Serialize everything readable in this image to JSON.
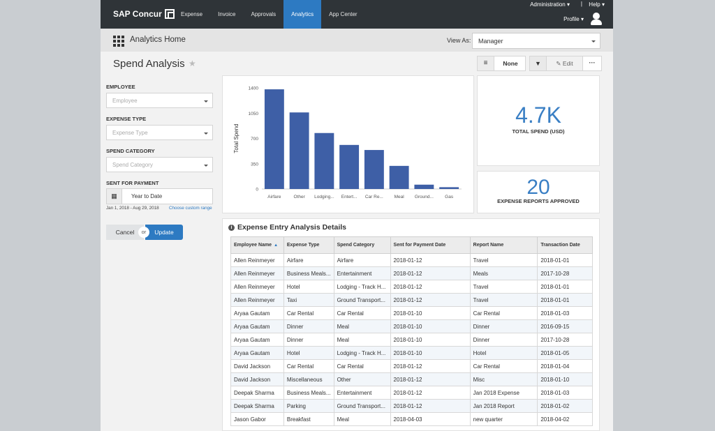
{
  "nav": {
    "brand": "SAP Concur",
    "tabs": [
      "Expense",
      "Invoice",
      "Approvals",
      "Analytics",
      "App Center"
    ],
    "active_tab": "Analytics",
    "administration": "Administration ▾",
    "separator": "|",
    "help": "Help ▾",
    "profile": "Profile ▾"
  },
  "subheader": {
    "title": "Analytics Home",
    "view_as_label": "View As:",
    "view_as_value": "Manager"
  },
  "page": {
    "title": "Spend Analysis"
  },
  "toolbar": {
    "data_source_value": "None",
    "edit_label": "Edit",
    "more_label": "···"
  },
  "filters": {
    "employee_label": "EMPLOYEE",
    "employee_placeholder": "Employee",
    "expense_type_label": "EXPENSE TYPE",
    "expense_type_placeholder": "Expense Type",
    "spend_category_label": "SPEND CATEGORY",
    "spend_category_placeholder": "Spend Category",
    "sent_for_payment_label": "SENT FOR PAYMENT",
    "date_value": "Year to Date",
    "date_range": "Jan 1, 2018 - Aug 29, 2018",
    "custom_range_link": "Choose custom range",
    "cancel": "Cancel",
    "or": "or",
    "update": "Update"
  },
  "kpis": {
    "total_spend_value": "4.7K",
    "total_spend_label": "TOTAL SPEND (USD)",
    "reports_value": "20",
    "reports_label": "EXPENSE REPORTS APPROVED"
  },
  "chart_data": {
    "type": "bar",
    "categories": [
      "Airfare",
      "Other",
      "Lodging...",
      "Entert...",
      "Car Re...",
      "Meal",
      "Ground...",
      "Gas"
    ],
    "values": [
      1380,
      1060,
      775,
      610,
      540,
      320,
      60,
      25
    ],
    "ylabel": "Total Spend",
    "xlabel": "",
    "ylim": [
      0,
      1400
    ],
    "yticks": [
      0,
      350,
      700,
      1050,
      1400
    ],
    "bar_color": "#3e5fa6"
  },
  "table": {
    "title": "Expense Entry Analysis Details",
    "columns": [
      "Employee Name",
      "Expense Type",
      "Spend Category",
      "Sent for Payment Date",
      "Report Name",
      "Transaction Date"
    ],
    "rows": [
      [
        "Allen Reinmeyer",
        "Airfare",
        "Airfare",
        "2018-01-12",
        "Travel",
        "2018-01-01"
      ],
      [
        "Allen Reinmeyer",
        "Business Meals...",
        "Entertainment",
        "2018-01-12",
        "Meals",
        "2017-10-28"
      ],
      [
        "Allen Reinmeyer",
        "Hotel",
        "Lodging - Track H...",
        "2018-01-12",
        "Travel",
        "2018-01-01"
      ],
      [
        "Allen Reinmeyer",
        "Taxi",
        "Ground Transport...",
        "2018-01-12",
        "Travel",
        "2018-01-01"
      ],
      [
        "Aryaa Gautam",
        "Car Rental",
        "Car Rental",
        "2018-01-10",
        "Car Rental",
        "2018-01-03"
      ],
      [
        "Aryaa Gautam",
        "Dinner",
        "Meal",
        "2018-01-10",
        "Dinner",
        "2016-09-15"
      ],
      [
        "Aryaa Gautam",
        "Dinner",
        "Meal",
        "2018-01-10",
        "Dinner",
        "2017-10-28"
      ],
      [
        "Aryaa Gautam",
        "Hotel",
        "Lodging - Track H...",
        "2018-01-10",
        "Hotel",
        "2018-01-05"
      ],
      [
        "David Jackson",
        "Car Rental",
        "Car Rental",
        "2018-01-12",
        "Car Rental",
        "2018-01-04"
      ],
      [
        "David Jackson",
        "Miscellaneous",
        "Other",
        "2018-01-12",
        "Misc",
        "2018-01-10"
      ],
      [
        "Deepak Sharma",
        "Business Meals...",
        "Entertainment",
        "2018-01-12",
        "Jan 2018 Expense",
        "2018-01-03"
      ],
      [
        "Deepak Sharma",
        "Parking",
        "Ground Transport...",
        "2018-01-12",
        "Jan 2018 Report",
        "2018-01-02"
      ],
      [
        "Jason Gabor",
        "Breakfast",
        "Meal",
        "2018-04-03",
        "new quarter",
        "2018-04-02"
      ]
    ]
  }
}
